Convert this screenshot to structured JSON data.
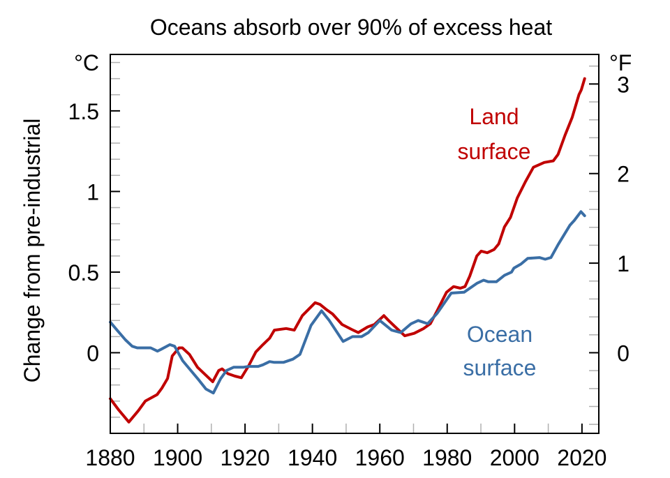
{
  "chart_data": {
    "type": "line",
    "title": "Oceans absorb over 90% of excess heat",
    "xlabel": "",
    "ylabel": "Change from pre-industrial",
    "y_unit_left": "°C",
    "y_unit_right": "°F",
    "xlim": [
      1880,
      2025
    ],
    "ylim": [
      -0.5,
      1.85
    ],
    "x_ticks": [
      1880,
      1900,
      1920,
      1940,
      1960,
      1980,
      2000,
      2020
    ],
    "x_tick_labels": [
      "1880",
      "1900",
      "1920",
      "1940",
      "1960",
      "1980",
      "2000",
      "2020"
    ],
    "x_minor_step": 10,
    "y_ticks_left": [
      0,
      0.5,
      1,
      1.5
    ],
    "y_tick_labels_left": [
      "0",
      "0.5",
      "1",
      "1.5"
    ],
    "y_minor_step_left": 0.1,
    "y_ticks_right_f": [
      0,
      1,
      2,
      3
    ],
    "y_tick_labels_right": [
      "0",
      "1",
      "2",
      "3"
    ],
    "y_minor_step_right_f": 0.2,
    "grid": false,
    "legend": "inline-labels",
    "series": [
      {
        "name": "Land surface",
        "label_lines": [
          "Land",
          "surface"
        ],
        "color": "#C00000",
        "x": [
          1880,
          1882.5,
          1885.5,
          1888.3,
          1890.4,
          1893.9,
          1895.3,
          1897,
          1898.4,
          1900.4,
          1901.4,
          1903.5,
          1905.9,
          1908.4,
          1910.4,
          1912.2,
          1913.2,
          1914.9,
          1917,
          1918.9,
          1921.1,
          1923.2,
          1925.3,
          1927.3,
          1928.7,
          1932.2,
          1934.6,
          1937,
          1940.8,
          1942.2,
          1944,
          1946,
          1948.8,
          1951.6,
          1953.6,
          1956.4,
          1958.4,
          1961.2,
          1962.6,
          1964.6,
          1967.4,
          1970.2,
          1973,
          1975,
          1977,
          1979.8,
          1981.9,
          1983.9,
          1985.3,
          1986.7,
          1988.8,
          1990.1,
          1991.9,
          1993.9,
          1995.3,
          1997,
          1998.8,
          2000.8,
          2003.2,
          2005.6,
          2008.8,
          2011.5,
          2012.9,
          2015,
          2017.1,
          2019.1,
          2019.8,
          2020.8
        ],
        "values": [
          -0.285,
          -0.355,
          -0.43,
          -0.36,
          -0.3,
          -0.26,
          -0.22,
          -0.16,
          -0.02,
          0.03,
          0.03,
          -0.01,
          -0.09,
          -0.14,
          -0.18,
          -0.11,
          -0.1,
          -0.13,
          -0.145,
          -0.155,
          -0.08,
          0.005,
          0.05,
          0.09,
          0.14,
          0.15,
          0.14,
          0.23,
          0.31,
          0.3,
          0.27,
          0.24,
          0.175,
          0.145,
          0.125,
          0.16,
          0.175,
          0.23,
          0.2,
          0.16,
          0.105,
          0.12,
          0.15,
          0.18,
          0.26,
          0.375,
          0.41,
          0.4,
          0.41,
          0.475,
          0.6,
          0.63,
          0.62,
          0.64,
          0.675,
          0.78,
          0.84,
          0.96,
          1.06,
          1.15,
          1.18,
          1.19,
          1.23,
          1.35,
          1.46,
          1.6,
          1.63,
          1.7
        ]
      },
      {
        "name": "Ocean surface",
        "label_lines": [
          "Ocean",
          "surface"
        ],
        "color": "#3A6EA5",
        "x": [
          1880,
          1882,
          1884.5,
          1886.5,
          1888,
          1890,
          1892,
          1894,
          1895,
          1897.7,
          1899.1,
          1901.5,
          1903.9,
          1906.3,
          1908.4,
          1910.6,
          1912.8,
          1914.5,
          1916.6,
          1919.4,
          1921.1,
          1923.9,
          1925.3,
          1927.3,
          1928.7,
          1931.4,
          1934.2,
          1936.3,
          1939.6,
          1942.7,
          1945,
          1949.1,
          1951.9,
          1954.6,
          1956.6,
          1960,
          1963.5,
          1966.2,
          1969.3,
          1971.4,
          1974.2,
          1977,
          1981.2,
          1985,
          1988.8,
          1990.8,
          1992.2,
          1994.6,
          1997,
          1999.1,
          1999.8,
          2001.9,
          2003.9,
          2007.4,
          2009.1,
          2010.8,
          2012.9,
          2016.4,
          2017.7,
          2019.7,
          2020.8
        ],
        "values": [
          0.19,
          0.14,
          0.08,
          0.04,
          0.03,
          0.03,
          0.03,
          0.01,
          0.02,
          0.05,
          0.04,
          -0.05,
          -0.11,
          -0.17,
          -0.225,
          -0.25,
          -0.16,
          -0.11,
          -0.09,
          -0.09,
          -0.085,
          -0.085,
          -0.075,
          -0.055,
          -0.06,
          -0.06,
          -0.04,
          -0.01,
          0.17,
          0.26,
          0.2,
          0.07,
          0.1,
          0.1,
          0.125,
          0.2,
          0.14,
          0.125,
          0.18,
          0.2,
          0.18,
          0.244,
          0.37,
          0.375,
          0.43,
          0.45,
          0.44,
          0.44,
          0.48,
          0.5,
          0.525,
          0.55,
          0.585,
          0.59,
          0.58,
          0.59,
          0.67,
          0.79,
          0.82,
          0.875,
          0.85
        ]
      }
    ]
  }
}
